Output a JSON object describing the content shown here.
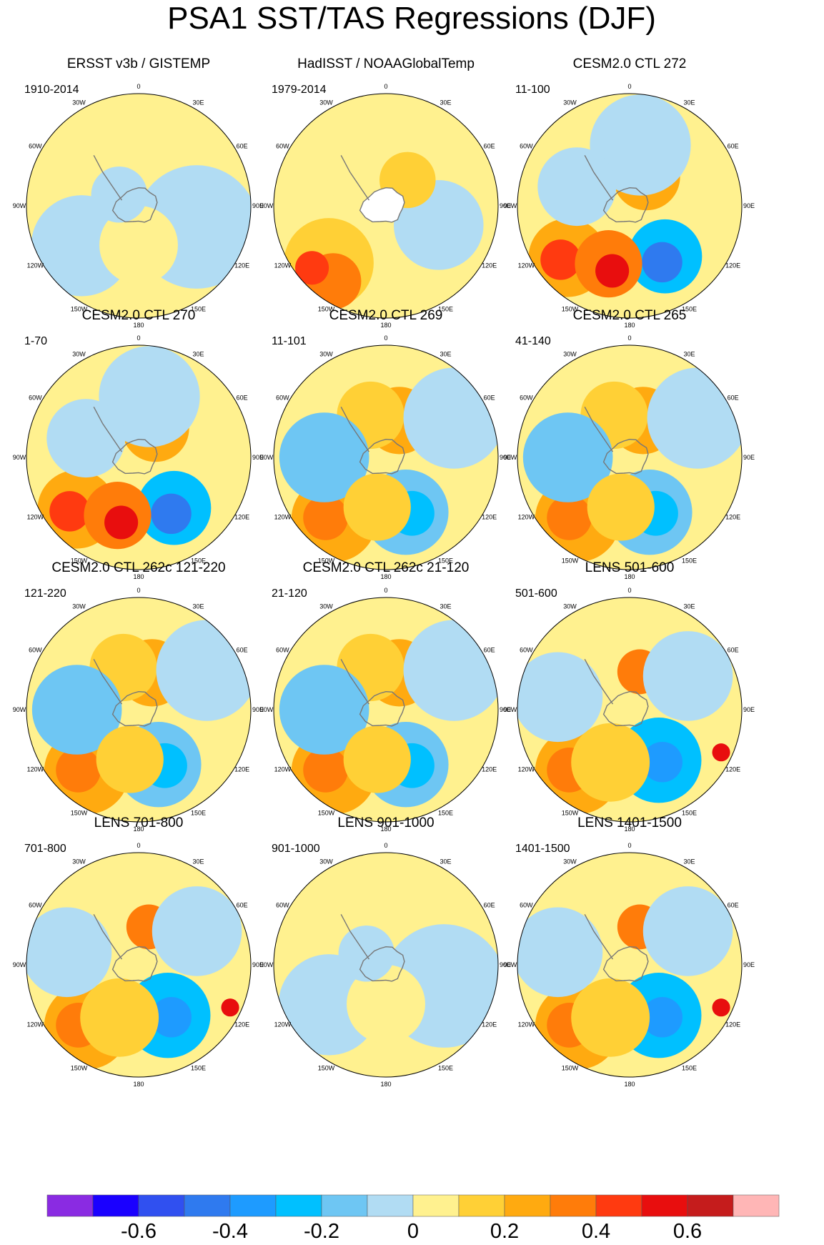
{
  "title": "PSA1 SST/TAS Regressions (DJF)",
  "lon_labels": [
    "0",
    "30E",
    "60E",
    "90E",
    "120E",
    "150E",
    "180",
    "150W",
    "120W",
    "90W",
    "60W",
    "30W"
  ],
  "panels": [
    {
      "title": "ERSST v3b / GISTEMP",
      "period": "1910-2014",
      "style": "weak",
      "antarctica_blank": false
    },
    {
      "title": "HadISST / NOAAGlobalTemp",
      "period": "1979-2014",
      "style": "obs2",
      "antarctica_blank": true
    },
    {
      "title": "CESM2.0 CTL 272",
      "period": "11-100",
      "style": "strong",
      "antarctica_blank": false
    },
    {
      "title": "CESM2.0 CTL 270",
      "period": "1-70",
      "style": "strong",
      "antarctica_blank": false
    },
    {
      "title": "CESM2.0 CTL 269",
      "period": "11-101",
      "style": "model",
      "antarctica_blank": false
    },
    {
      "title": "CESM2.0 CTL 265",
      "period": "41-140",
      "style": "model",
      "antarctica_blank": false
    },
    {
      "title": "CESM2.0 CTL 262c 121-220",
      "period": "121-220",
      "style": "model",
      "antarctica_blank": false
    },
    {
      "title": "CESM2.0 CTL 262c 21-120",
      "period": "21-120",
      "style": "model",
      "antarctica_blank": false
    },
    {
      "title": "LENS 501-600",
      "period": "501-600",
      "style": "lens",
      "antarctica_blank": false
    },
    {
      "title": "LENS 701-800",
      "period": "701-800",
      "style": "lens",
      "antarctica_blank": false
    },
    {
      "title": "LENS 901-1000",
      "period": "901-1000",
      "style": "weak",
      "antarctica_blank": false
    },
    {
      "title": "LENS 1401-1500",
      "period": "1401-1500",
      "style": "lens",
      "antarctica_blank": false
    }
  ],
  "colorbar": {
    "colors": [
      "#8a2be2",
      "#1a00ff",
      "#3050f0",
      "#2f7aef",
      "#1e9bff",
      "#00c0ff",
      "#6ec6f3",
      "#b1dcf3",
      "#fff18f",
      "#ffd036",
      "#ffaa10",
      "#ff7c0a",
      "#ff3a10",
      "#e80e0e",
      "#c51c1c",
      "#ffb6b6"
    ],
    "tick_labels": [
      "-0.6",
      "-0.4",
      "-0.2",
      "0",
      "0.2",
      "0.4",
      "0.6"
    ],
    "tick_values": [
      -0.6,
      -0.4,
      -0.2,
      0,
      0.2,
      0.4,
      0.6
    ]
  }
}
